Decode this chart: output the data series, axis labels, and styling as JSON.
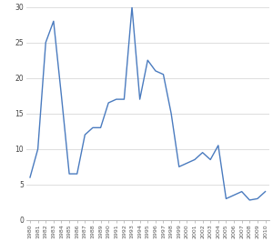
{
  "years": [
    1980,
    1981,
    1982,
    1983,
    1984,
    1985,
    1986,
    1987,
    1988,
    1989,
    1990,
    1991,
    1992,
    1993,
    1994,
    1995,
    1996,
    1997,
    1998,
    1999,
    2000,
    2001,
    2002,
    2003,
    2004,
    2005,
    2006,
    2007,
    2008,
    2009,
    2010
  ],
  "values": [
    6.0,
    10.0,
    25.0,
    28.0,
    17.5,
    6.5,
    6.5,
    12.0,
    13.0,
    13.0,
    16.5,
    17.0,
    17.0,
    30.0,
    17.0,
    22.5,
    21.0,
    20.5,
    15.0,
    7.5,
    8.0,
    8.5,
    9.5,
    8.5,
    10.5,
    3.0,
    3.5,
    4.0,
    2.8,
    3.0,
    4.0
  ],
  "line_color": "#4a7bbf",
  "ylim": [
    0,
    30
  ],
  "xlim": [
    1980,
    2010
  ],
  "yticks": [
    0,
    5,
    10,
    15,
    20,
    25,
    30
  ],
  "grid_color": "#d8d8d8",
  "bg_color": "#ffffff",
  "linewidth": 1.0
}
